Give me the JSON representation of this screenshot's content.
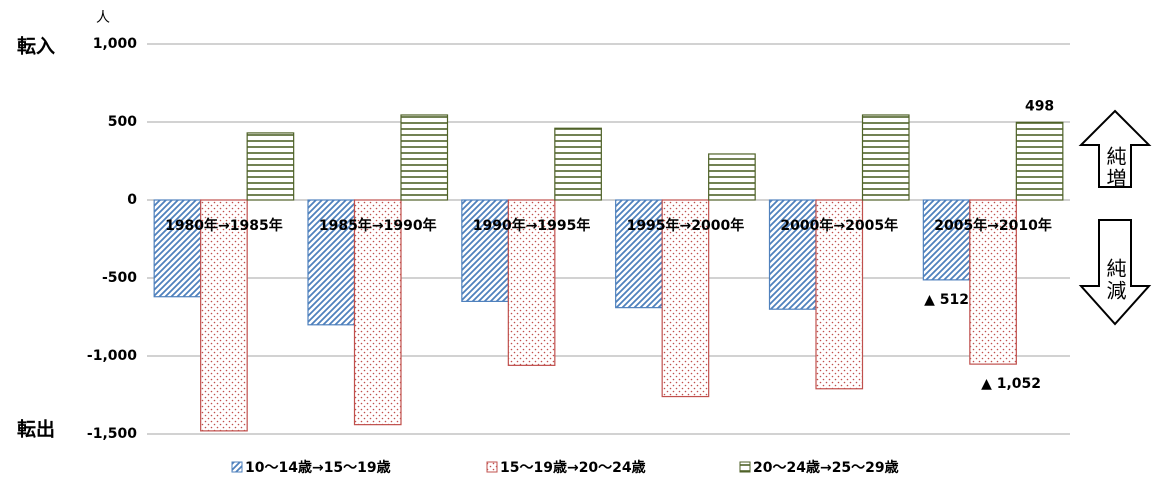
{
  "chart_data": {
    "type": "bar",
    "y_label": "人",
    "annotations": [
      "転入",
      "転出",
      "純増",
      "純減"
    ],
    "categories": [
      "1980年→1985年",
      "1985年→1990年",
      "1990年→1995年",
      "1995年→2000年",
      "2000年→2005年",
      "2005年→2010年"
    ],
    "series": [
      {
        "name": "10～14歳→15～19歳",
        "color": "#4f81bd",
        "pattern": "diagonal",
        "values": [
          -620,
          -800,
          -650,
          -690,
          -700,
          -512
        ],
        "value_labels": [
          null,
          null,
          null,
          null,
          null,
          "▲ 512"
        ]
      },
      {
        "name": "15～19歳→20～24歳",
        "color": "#c0504d",
        "pattern": "dots",
        "values": [
          -1480,
          -1440,
          -1060,
          -1260,
          -1210,
          -1052
        ],
        "value_labels": [
          null,
          null,
          null,
          null,
          null,
          "▲ 1,052"
        ]
      },
      {
        "name": "20～24歳→25～29歳",
        "color": "#4f6228",
        "pattern": "horizontal",
        "values": [
          430,
          545,
          460,
          295,
          545,
          498
        ],
        "value_labels": [
          null,
          null,
          null,
          null,
          null,
          "498"
        ]
      }
    ],
    "ylim": [
      -1500,
      1000
    ],
    "yticks": [
      {
        "value": -1500,
        "label": "-1,500"
      },
      {
        "value": -1000,
        "label": "-1,000"
      },
      -500,
      0,
      500,
      {
        "value": 1000,
        "label": "1,000"
      }
    ],
    "grid": true,
    "legend": "bottom"
  }
}
